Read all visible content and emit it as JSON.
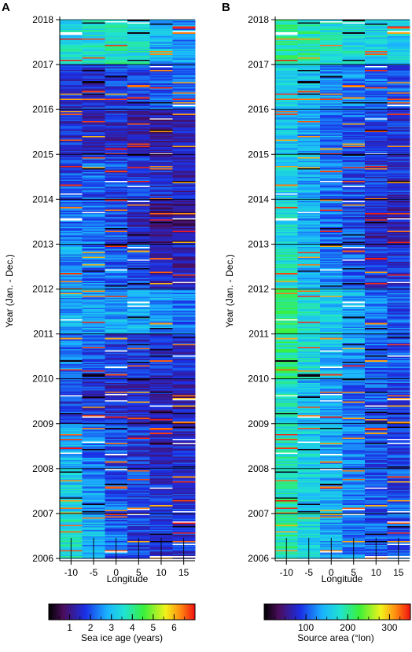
{
  "figure": {
    "panels": [
      {
        "letter": "A",
        "ylabel": "Year (Jan. - Dec.)",
        "xlabel": "Longitude",
        "colorbar_label": "Sea ice age (years)",
        "colorbar_ticks": [
          "1",
          "2",
          "3",
          "4",
          "5",
          "6"
        ]
      },
      {
        "letter": "B",
        "ylabel": "Year (Jan. - Dec.)",
        "xlabel": "Longitude",
        "colorbar_label": "Source area (°lon)",
        "colorbar_ticks": [
          "100",
          "200",
          "300"
        ]
      }
    ]
  },
  "chart_data": [
    {
      "type": "heatmap",
      "title": "",
      "xlabel": "Longitude",
      "ylabel": "Year (Jan. - Dec.)",
      "x": [
        -10,
        -5,
        0,
        5,
        10,
        15
      ],
      "x_tick_labels": [
        "-10",
        "-5",
        "0",
        "5",
        "10",
        "15"
      ],
      "y_tick_labels": [
        "2006",
        "2007",
        "2008",
        "2009",
        "2010",
        "2011",
        "2012",
        "2013",
        "2014",
        "2015",
        "2016",
        "2017",
        "2018"
      ],
      "ylim": [
        2006,
        2018
      ],
      "colorbar": {
        "label": "Sea ice age (years)",
        "range": [
          0,
          7
        ],
        "ticks": [
          1,
          2,
          3,
          4,
          5,
          6
        ],
        "colormap": "spectral"
      },
      "period_means": [
        {
          "year": 2006,
          "values": [
            3.5,
            2.8,
            2.2,
            1.9,
            1.7,
            1.6
          ]
        },
        {
          "year": 2007,
          "values": [
            3.2,
            2.5,
            2.1,
            1.9,
            1.6,
            1.7
          ]
        },
        {
          "year": 2008,
          "values": [
            2.8,
            2.3,
            1.9,
            1.7,
            1.4,
            1.5
          ]
        },
        {
          "year": 2009,
          "values": [
            1.8,
            1.6,
            1.5,
            1.4,
            1.3,
            1.3
          ]
        },
        {
          "year": 2010,
          "values": [
            2.3,
            2.0,
            1.8,
            1.7,
            1.6,
            1.5
          ]
        },
        {
          "year": 2011,
          "values": [
            2.7,
            2.6,
            2.7,
            2.8,
            2.6,
            2.3
          ]
        },
        {
          "year": 2012,
          "values": [
            2.6,
            2.3,
            2.1,
            2.0,
            1.5,
            1.3
          ]
        },
        {
          "year": 2013,
          "values": [
            2.3,
            2.2,
            2.0,
            1.5,
            1.1,
            0.9
          ]
        },
        {
          "year": 2014,
          "values": [
            2.0,
            2.1,
            1.9,
            1.7,
            1.5,
            1.4
          ]
        },
        {
          "year": 2015,
          "values": [
            1.6,
            1.5,
            1.5,
            1.3,
            1.2,
            1.3
          ]
        },
        {
          "year": 2016,
          "values": [
            1.7,
            1.7,
            1.8,
            1.9,
            2.0,
            2.2
          ]
        },
        {
          "year": 2017,
          "values": [
            3.4,
            3.6,
            3.8,
            3.6,
            2.9,
            2.5
          ]
        }
      ]
    },
    {
      "type": "heatmap",
      "title": "",
      "xlabel": "Longitude",
      "ylabel": "Year (Jan. - Dec.)",
      "x": [
        -10,
        -5,
        0,
        5,
        10,
        15
      ],
      "x_tick_labels": [
        "-10",
        "-5",
        "0",
        "5",
        "10",
        "15"
      ],
      "y_tick_labels": [
        "2006",
        "2007",
        "2008",
        "2009",
        "2010",
        "2011",
        "2012",
        "2013",
        "2014",
        "2015",
        "2016",
        "2017",
        "2018"
      ],
      "ylim": [
        2006,
        2018
      ],
      "colorbar": {
        "label": "Source area (°lon)",
        "range": [
          0,
          350
        ],
        "ticks": [
          100,
          200,
          300
        ],
        "colormap": "spectral"
      },
      "period_means": [
        {
          "year": 2006,
          "values": [
            190,
            165,
            140,
            120,
            105,
            100
          ]
        },
        {
          "year": 2007,
          "values": [
            185,
            160,
            140,
            120,
            105,
            100
          ]
        },
        {
          "year": 2008,
          "values": [
            180,
            160,
            140,
            120,
            100,
            95
          ]
        },
        {
          "year": 2009,
          "values": [
            175,
            150,
            135,
            115,
            100,
            95
          ]
        },
        {
          "year": 2010,
          "values": [
            200,
            170,
            150,
            130,
            110,
            100
          ]
        },
        {
          "year": 2011,
          "values": [
            210,
            180,
            160,
            140,
            115,
            105
          ]
        },
        {
          "year": 2012,
          "values": [
            180,
            150,
            125,
            105,
            90,
            80
          ]
        },
        {
          "year": 2013,
          "values": [
            170,
            140,
            115,
            95,
            70,
            60
          ]
        },
        {
          "year": 2014,
          "values": [
            165,
            140,
            120,
            100,
            85,
            80
          ]
        },
        {
          "year": 2015,
          "values": [
            150,
            130,
            115,
            100,
            90,
            85
          ]
        },
        {
          "year": 2016,
          "values": [
            160,
            145,
            130,
            120,
            110,
            105
          ]
        },
        {
          "year": 2017,
          "values": [
            200,
            190,
            185,
            175,
            165,
            160
          ]
        }
      ]
    }
  ]
}
